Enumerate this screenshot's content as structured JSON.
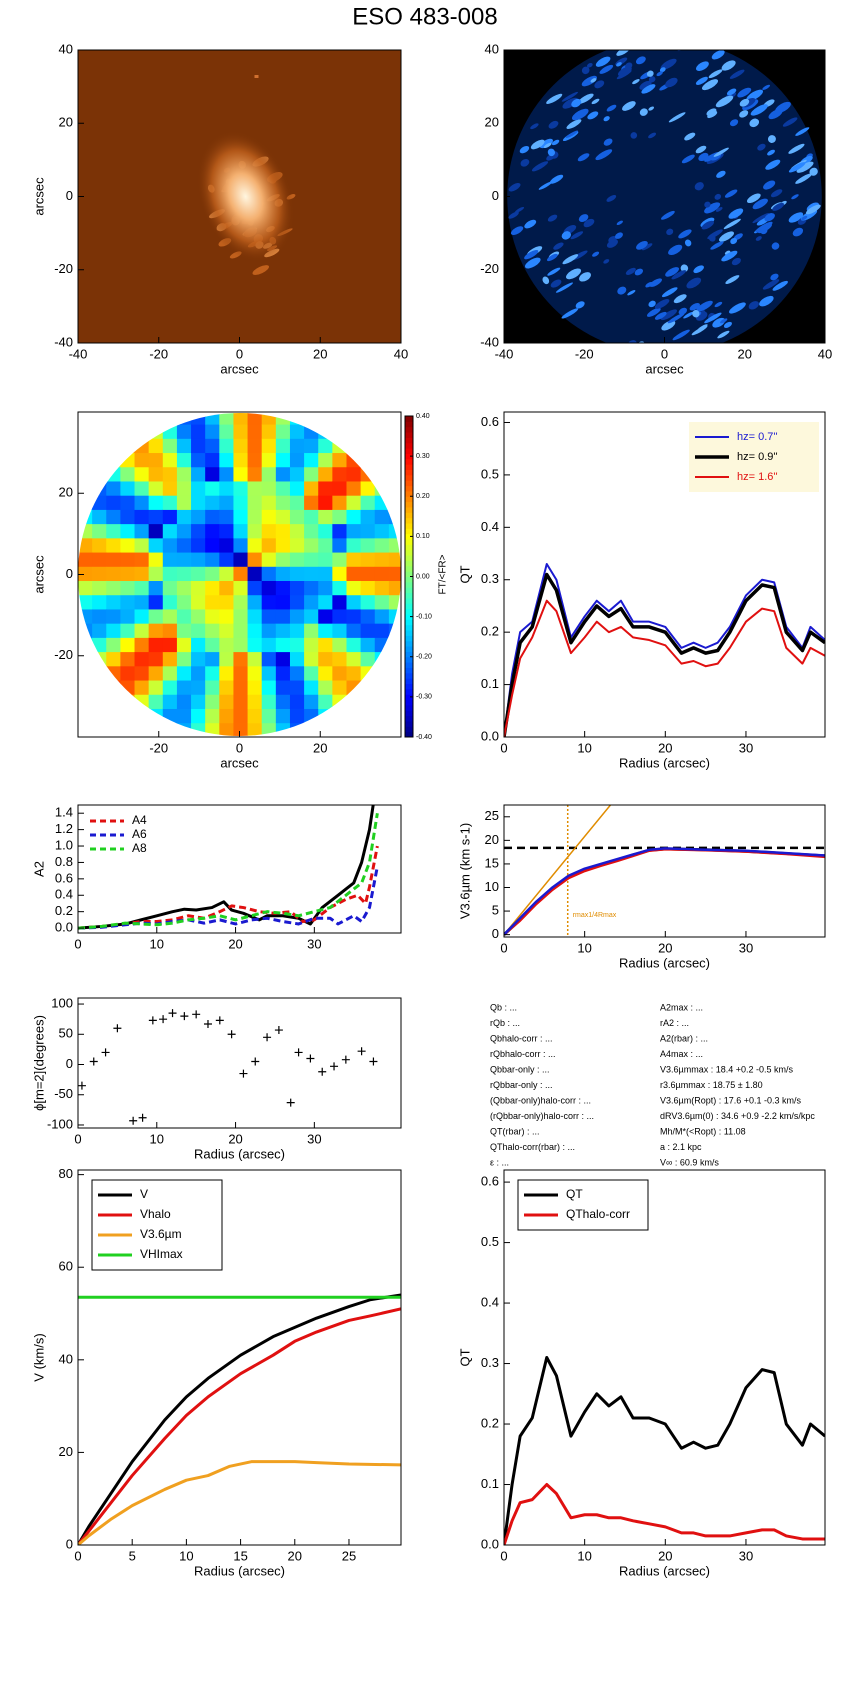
{
  "title": "ESO 483-008",
  "chart_data": [
    {
      "type": "image",
      "cmap": "brown",
      "xlim": [
        -40,
        40
      ],
      "ylim": [
        -40,
        40
      ],
      "xticks": [
        -40,
        -20,
        0,
        20,
        40
      ],
      "yticks": [
        -40,
        -20,
        0,
        20,
        40
      ],
      "xlabel": "arcsec",
      "ylabel": "arcsec"
    },
    {
      "type": "image",
      "cmap": "blue",
      "xlim": [
        -40,
        40
      ],
      "ylim": [
        -40,
        40
      ],
      "xticks": [
        -40,
        -20,
        0,
        20,
        40
      ],
      "yticks": [
        -40,
        -20,
        0,
        20,
        40
      ],
      "xlabel": "arcsec"
    },
    {
      "type": "colormap",
      "xlim": [
        -40,
        40
      ],
      "ylim": [
        -40,
        40
      ],
      "xticks": [
        -20,
        0,
        20
      ],
      "yticks": [
        -20,
        0,
        20
      ],
      "xlabel": "arcsec",
      "ylabel": "arcsec",
      "colorbar": {
        "lim": [
          -0.4,
          0.4
        ],
        "label": "FT/<FR>",
        "ticks": [
          {
            "value": 0.4,
            "label": "0.40"
          },
          {
            "value": 0.3,
            "label": "0.30"
          },
          {
            "value": 0.2,
            "label": "0.20"
          },
          {
            "value": 0.1,
            "label": "0.10"
          },
          {
            "value": 0,
            "label": "0.00"
          },
          {
            "value": -0.1,
            "label": "-0.10"
          },
          {
            "value": -0.2,
            "label": "-0.20"
          },
          {
            "value": -0.3,
            "label": "-0.30"
          },
          {
            "value": -0.4,
            "label": "-0.40"
          }
        ]
      }
    },
    {
      "type": "line",
      "xlim": [
        0,
        39.8
      ],
      "ylim": [
        0,
        0.62
      ],
      "xticks": [
        0,
        10,
        20,
        30
      ],
      "yticks": [
        {
          "value": 0,
          "label": "0.0"
        },
        {
          "value": 0.1,
          "label": "0.1"
        },
        {
          "value": 0.2,
          "label": "0.2"
        },
        {
          "value": 0.3,
          "label": "0.3"
        },
        {
          "value": 0.4,
          "label": "0.4"
        },
        {
          "value": 0.5,
          "label": "0.5"
        },
        {
          "value": 0.6,
          "label": "0.6"
        }
      ],
      "xlabel": "Radius (arcsec)",
      "ylabel": "QT",
      "legend": "upper right",
      "legend_frame": true,
      "legend_bg": "#fdf8dc",
      "legend_text_colored": true,
      "x": [
        0,
        1,
        2,
        3.5,
        5.3,
        6.5,
        8.3,
        10,
        11.5,
        13,
        14.5,
        16,
        18,
        20,
        22,
        23.5,
        25,
        26.5,
        28,
        30,
        32,
        33.5,
        35,
        37,
        38,
        39.8
      ],
      "series": [
        {
          "name": "hz=  0.7''",
          "color": "#1a1ad0",
          "width": 2,
          "values": [
            0,
            0.12,
            0.2,
            0.22,
            0.33,
            0.3,
            0.19,
            0.23,
            0.26,
            0.24,
            0.26,
            0.22,
            0.22,
            0.21,
            0.17,
            0.18,
            0.17,
            0.18,
            0.21,
            0.27,
            0.3,
            0.295,
            0.21,
            0.17,
            0.21,
            0.185
          ]
        },
        {
          "name": "hz=  0.9''",
          "color": "#000000",
          "width": 3.5,
          "values": [
            0,
            0.1,
            0.18,
            0.21,
            0.31,
            0.28,
            0.18,
            0.22,
            0.25,
            0.23,
            0.245,
            0.21,
            0.21,
            0.2,
            0.16,
            0.17,
            0.16,
            0.165,
            0.2,
            0.26,
            0.29,
            0.285,
            0.2,
            0.165,
            0.2,
            0.18
          ]
        },
        {
          "name": "hz=  1.6''",
          "color": "#e01010",
          "width": 2,
          "values": [
            0,
            0.08,
            0.15,
            0.19,
            0.26,
            0.24,
            0.16,
            0.19,
            0.22,
            0.2,
            0.21,
            0.19,
            0.185,
            0.175,
            0.14,
            0.145,
            0.135,
            0.14,
            0.17,
            0.22,
            0.245,
            0.24,
            0.17,
            0.14,
            0.17,
            0.155
          ]
        }
      ]
    },
    {
      "type": "line",
      "xlim": [
        0,
        41
      ],
      "ylim": [
        -0.06,
        1.5
      ],
      "xticks": [
        0,
        10,
        20,
        30
      ],
      "yticks": [
        {
          "value": 0,
          "label": "0.0"
        },
        {
          "value": 0.2,
          "label": "0.2"
        },
        {
          "value": 0.4,
          "label": "0.4"
        },
        {
          "value": 0.6,
          "label": "0.6"
        },
        {
          "value": 0.8,
          "label": "0.8"
        },
        {
          "value": 1,
          "label": "1.0"
        },
        {
          "value": 1.2,
          "label": "1.2"
        },
        {
          "value": 1.4,
          "label": "1.4"
        }
      ],
      "ylabel": "A2",
      "legend": "upper left",
      "legend_frame": false,
      "series": [
        {
          "color": "#000000",
          "width": 3,
          "x": [
            0,
            3,
            6,
            8,
            10,
            12,
            13.5,
            15,
            17,
            18.5,
            19.5,
            21,
            23,
            24,
            26,
            28,
            29.5,
            31,
            33,
            35,
            36,
            37,
            37.5
          ],
          "values": [
            0,
            0.02,
            0.05,
            0.1,
            0.15,
            0.2,
            0.23,
            0.22,
            0.25,
            0.32,
            0.22,
            0.18,
            0.1,
            0.15,
            0.15,
            0.12,
            0.05,
            0.25,
            0.4,
            0.55,
            0.8,
            1.2,
            1.52
          ]
        },
        {
          "name": "A4",
          "color": "#e01010",
          "width": 3,
          "dash": true,
          "x": [
            0,
            3,
            6,
            8,
            10,
            12,
            14,
            16,
            18,
            19.5,
            21,
            23,
            25,
            27,
            28.5,
            30,
            32,
            34,
            35.5,
            36.5,
            37,
            38
          ],
          "values": [
            0,
            0.02,
            0.05,
            0.08,
            0.08,
            0.1,
            0.15,
            0.12,
            0.2,
            0.27,
            0.25,
            0.2,
            0.18,
            0.2,
            0.08,
            0.1,
            0.25,
            0.35,
            0.4,
            0.3,
            0.5,
            1
          ]
        },
        {
          "name": "A6",
          "color": "#1a1ad0",
          "width": 3,
          "dash": true,
          "x": [
            0,
            3,
            6,
            8,
            10,
            12,
            14,
            16,
            18,
            20,
            22,
            24,
            26,
            28,
            30,
            32,
            33,
            35,
            36,
            37,
            38
          ],
          "values": [
            0,
            0.01,
            0.04,
            0.06,
            0.05,
            0.08,
            0.1,
            0.06,
            0.1,
            0.05,
            0.1,
            0.12,
            0.08,
            0.05,
            0.12,
            0.12,
            0.05,
            0.15,
            0.08,
            0.25,
            0.75
          ]
        },
        {
          "name": "A8",
          "color": "#20d020",
          "width": 3,
          "dash": true,
          "x": [
            0,
            3,
            6,
            8,
            10,
            12,
            14,
            16,
            18,
            20,
            22,
            24,
            26,
            28,
            30,
            32,
            34,
            36,
            37,
            38
          ],
          "values": [
            0,
            0.02,
            0.06,
            0.05,
            0.04,
            0.06,
            0.1,
            0.12,
            0.15,
            0.1,
            0.15,
            0.2,
            0.18,
            0.15,
            0.2,
            0.25,
            0.4,
            0.55,
            0.8,
            1.4
          ]
        }
      ]
    },
    {
      "type": "line",
      "xlim": [
        0,
        39.8
      ],
      "ylim": [
        -0.5,
        27.5
      ],
      "xticks": [
        0,
        10,
        20,
        30
      ],
      "yticks": [
        0,
        5,
        10,
        15,
        20,
        25
      ],
      "xlabel": "Radius (arcsec)",
      "ylabel": "V3.6µm (km s-1)",
      "x": [
        0,
        2,
        4,
        6,
        8,
        10,
        12,
        14,
        16,
        18,
        20,
        25,
        30,
        35,
        39.8
      ],
      "hlines": [
        {
          "y": 18.4,
          "color": "#000000"
        }
      ],
      "vlines": [
        {
          "x": 7.9,
          "color": "#e08c00",
          "label": "rmax1/4Rmax"
        }
      ],
      "series": [
        {
          "color": "#e08c00",
          "width": 1.5,
          "x": [
            0,
            13.2
          ],
          "values": [
            0,
            27.5
          ]
        },
        {
          "color": "#000000",
          "width": 3,
          "values": [
            0,
            3.2,
            6.8,
            9.8,
            12.3,
            13.8,
            14.8,
            15.8,
            16.9,
            17.9,
            18.2,
            18,
            17.7,
            17.2,
            16.7
          ]
        },
        {
          "color": "#e01010",
          "width": 2.5,
          "values": [
            0,
            3,
            6.5,
            9.5,
            12,
            13.5,
            14.6,
            15.6,
            16.7,
            17.8,
            18.1,
            17.9,
            17.6,
            17.1,
            16.5
          ]
        },
        {
          "color": "#1a1ad0",
          "width": 2.5,
          "values": [
            0,
            3.5,
            7,
            10,
            12.5,
            14,
            15,
            16,
            17,
            18,
            18.3,
            18,
            17.8,
            17.3,
            16.8
          ]
        }
      ]
    },
    {
      "type": "scatter",
      "xlim": [
        0,
        41
      ],
      "ylim": [
        -105,
        110
      ],
      "xticks": [
        0,
        10,
        20,
        30
      ],
      "yticks": [
        -100,
        -50,
        0,
        50,
        100
      ],
      "xlabel": "Radius (arcsec)",
      "ylabel": "ϕ[m=2](degrees)",
      "color": "#000000",
      "x": [
        0.5,
        2,
        3.5,
        5,
        7,
        8.2,
        9.5,
        10.8,
        12,
        13.5,
        15,
        16.5,
        18,
        19.5,
        21,
        22.5,
        24,
        25.5,
        27,
        28,
        29.5,
        31,
        32.5,
        34,
        36,
        37.5
      ],
      "values": [
        -35,
        5,
        20,
        60,
        -93,
        -88,
        73,
        75,
        85,
        80,
        83,
        67,
        73,
        50,
        -15,
        5,
        45,
        57,
        -63,
        20,
        10,
        -12,
        -3,
        8,
        22,
        5
      ]
    },
    {
      "type": "line",
      "xlim": [
        0,
        29.8
      ],
      "ylim": [
        0,
        81
      ],
      "xticks": [
        0,
        5,
        10,
        15,
        20,
        25
      ],
      "yticks": [
        0,
        20,
        40,
        60,
        80
      ],
      "xlabel": "Radius (arcsec)",
      "ylabel": "V (km/s)",
      "legend": "upper left",
      "legend_frame": true,
      "x": [
        0,
        1,
        3,
        5,
        8,
        10,
        12,
        15,
        18,
        20,
        22,
        25,
        27,
        29.8
      ],
      "series": [
        {
          "name": "V",
          "color": "#000000",
          "width": 3,
          "values": [
            0,
            4,
            11,
            18,
            27,
            32,
            36,
            41,
            45,
            47,
            49,
            51.5,
            53,
            54
          ]
        },
        {
          "name": "Vhalo",
          "color": "#e01010",
          "width": 3,
          "values": [
            0,
            3,
            9,
            15,
            23,
            28,
            32,
            37,
            41,
            44,
            46,
            48.5,
            49.5,
            51
          ]
        },
        {
          "name": "V3.6µm",
          "color": "#f0a020",
          "width": 3,
          "x": [
            0,
            1,
            3,
            5,
            8,
            10,
            12,
            14,
            16,
            18,
            20,
            22,
            25,
            29.8
          ],
          "values": [
            0,
            2,
            5.5,
            8.5,
            12,
            14,
            15,
            17,
            18,
            18,
            18,
            17.8,
            17.5,
            17.3
          ]
        },
        {
          "name": "VHImax",
          "color": "#20d020",
          "width": 3,
          "x": [
            0,
            29.8
          ],
          "values": [
            53.5,
            53.5
          ]
        }
      ]
    },
    {
      "type": "line",
      "xlim": [
        0,
        39.8
      ],
      "ylim": [
        0,
        0.62
      ],
      "xticks": [
        0,
        10,
        20,
        30
      ],
      "yticks": [
        {
          "value": 0,
          "label": "0.0"
        },
        {
          "value": 0.1,
          "label": "0.1"
        },
        {
          "value": 0.2,
          "label": "0.2"
        },
        {
          "value": 0.3,
          "label": "0.3"
        },
        {
          "value": 0.4,
          "label": "0.4"
        },
        {
          "value": 0.5,
          "label": "0.5"
        },
        {
          "value": 0.6,
          "label": "0.6"
        }
      ],
      "xlabel": "Radius (arcsec)",
      "ylabel": "QT",
      "legend": "upper left",
      "legend_frame": true,
      "x": [
        0,
        1,
        2,
        3.5,
        5.3,
        6.5,
        8.3,
        10,
        11.5,
        13,
        14.5,
        16,
        18,
        20,
        22,
        23.5,
        25,
        26.5,
        28,
        30,
        32,
        33.5,
        35,
        37,
        38,
        39.8
      ],
      "series": [
        {
          "name": "QT",
          "color": "#000000",
          "width": 3,
          "values": [
            0,
            0.1,
            0.18,
            0.21,
            0.31,
            0.28,
            0.18,
            0.22,
            0.25,
            0.23,
            0.245,
            0.21,
            0.21,
            0.2,
            0.16,
            0.17,
            0.16,
            0.165,
            0.2,
            0.26,
            0.29,
            0.285,
            0.2,
            0.165,
            0.2,
            0.18
          ]
        },
        {
          "name": "QThalo-corr",
          "color": "#e01010",
          "width": 3,
          "values": [
            0,
            0.04,
            0.07,
            0.075,
            0.1,
            0.085,
            0.045,
            0.05,
            0.05,
            0.045,
            0.045,
            0.04,
            0.035,
            0.03,
            0.02,
            0.02,
            0.015,
            0.015,
            0.015,
            0.02,
            0.025,
            0.025,
            0.015,
            0.01,
            0.01,
            0.01
          ]
        }
      ]
    }
  ],
  "parameters": {
    "left": [
      "Qb : ...",
      "rQb : ...",
      "Qbhalo-corr : ...",
      "rQbhalo-corr : ...",
      "Qbbar-only : ...",
      "rQbbar-only : ...",
      "(Qbbar-only)halo-corr : ...",
      "(rQbbar-only)halo-corr : ...",
      "QT(rbar) : ...",
      "QThalo-corr(rbar) : ...",
      "ε : ..."
    ],
    "right": [
      "A2max : ...",
      "rA2 : ...",
      "A2(rbar) : ...",
      "A4max : ...",
      "V3.6µmmax :  18.4 +0.2 -0.5 km/s",
      "r3.6µmmax :  18.75 ± 1.80",
      "V3.6µm(Ropt) :  17.6 +0.1 -0.3 km/s",
      "dRV3.6µm(0) :  34.6 +0.9 -2.2 km/s/kpc",
      "Mh/M*(<Ropt) :  11.08",
      "a :   2.1 kpc",
      "V∞ :  60.9 km/s"
    ]
  }
}
